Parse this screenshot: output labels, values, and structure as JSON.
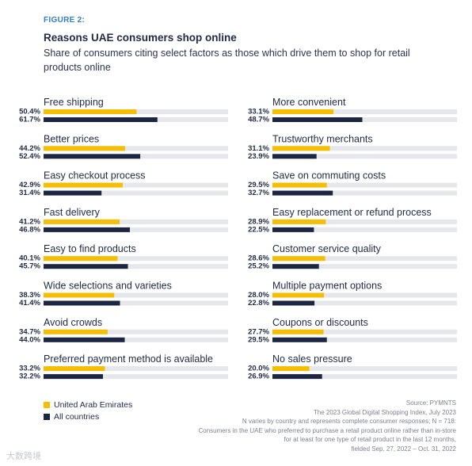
{
  "figure_label": "FIGURE 2:",
  "chart_data": {
    "type": "bar",
    "orientation": "horizontal",
    "title": "Reasons UAE consumers shop online",
    "subtitle": "Share of consumers citing select factors as those which drive them to shop for retail products online",
    "value_unit": "%",
    "xlim": [
      0,
      100
    ],
    "legend_placement": "bottom-left",
    "categories": [
      "Free shipping",
      "Better prices",
      "Easy checkout process",
      "Fast delivery",
      "Easy to find products",
      "Wide selections and varieties",
      "Avoid crowds",
      "Preferred payment method is available",
      "More convenient",
      "Trustworthy merchants",
      "Save on commuting costs",
      "Easy replacement or refund process",
      "Customer service quality",
      "Multiple payment options",
      "Coupons or discounts",
      "No sales pressure"
    ],
    "series": [
      {
        "name": "United Arab Emirates",
        "color": "#f5be00",
        "values": [
          50.4,
          44.2,
          42.9,
          41.2,
          40.1,
          38.3,
          34.7,
          33.2,
          33.1,
          31.1,
          29.5,
          28.9,
          28.6,
          28.0,
          27.7,
          20.0
        ]
      },
      {
        "name": "All countries",
        "color": "#1c2541",
        "values": [
          61.7,
          52.4,
          31.4,
          46.8,
          45.7,
          41.4,
          44.0,
          32.2,
          48.7,
          23.9,
          32.7,
          22.5,
          25.2,
          22.8,
          29.5,
          26.9
        ]
      }
    ],
    "track_color": "#e6e7ea"
  },
  "footer": {
    "source": "Source: PYMNTS",
    "lines": [
      "The 2023 Global Digital Shopping Index, July 2023",
      "N varies by country and represents complete consumer responses; N = 718:",
      "Consumers in the UAE who preferred to purchase a retail product online rather than in-store",
      "for at least for one type of retail product in the last 12 months,",
      "fielded Sep. 27, 2022 – Oct. 31, 2022"
    ]
  },
  "watermark": "大数跨境"
}
